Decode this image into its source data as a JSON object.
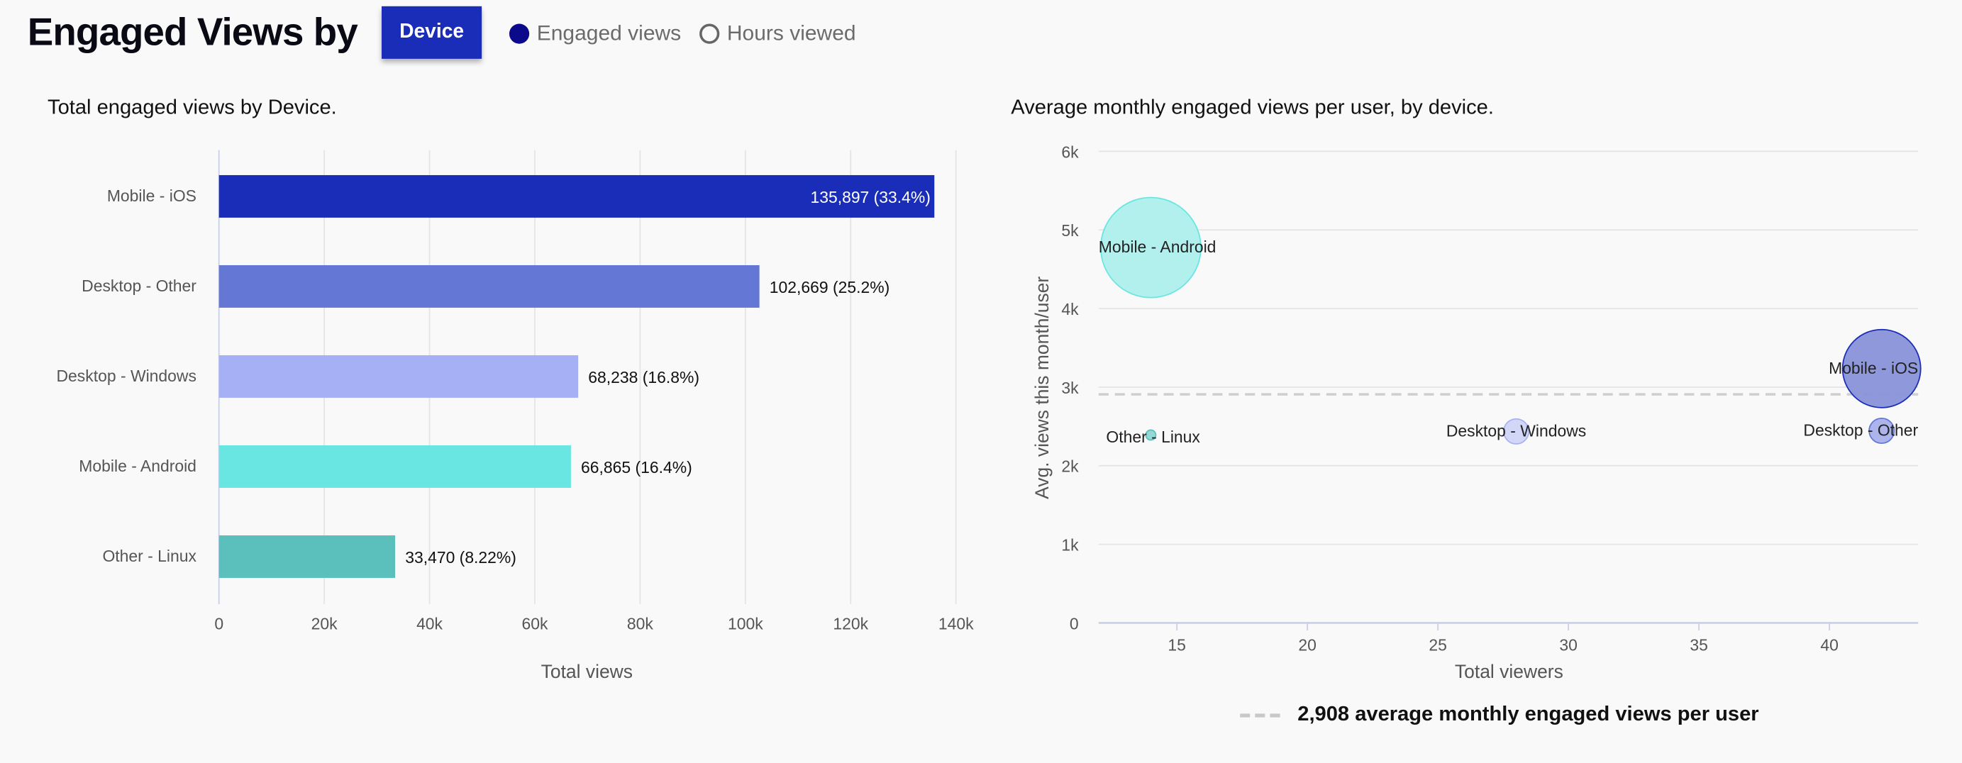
{
  "header": {
    "title": "Engaged Views by",
    "device_button": "Device",
    "legend": [
      {
        "label": "Engaged views",
        "selected": true,
        "color": "#0a0a8a"
      },
      {
        "label": "Hours viewed",
        "selected": false,
        "color": "#666666"
      }
    ]
  },
  "chart_data": [
    {
      "type": "bar",
      "orientation": "horizontal",
      "title": "Total engaged views by Device.",
      "categories": [
        "Mobile - iOS",
        "Desktop - Other",
        "Desktop - Windows",
        "Mobile - Android",
        "Other - Linux"
      ],
      "values": [
        135897,
        102669,
        68238,
        66865,
        33470
      ],
      "data_labels": [
        "135,897 (33.4%)",
        "102,669 (25.2%)",
        "68,238 (16.8%)",
        "66,865 (16.4%)",
        "33,470 (8.22%)"
      ],
      "colors": [
        "#1a2db8",
        "#6477d4",
        "#a6b1f5",
        "#6ae6e2",
        "#5bbfbb"
      ],
      "xlabel": "Total views",
      "xlim": [
        0,
        140000
      ],
      "xticks": [
        0,
        20000,
        40000,
        60000,
        80000,
        100000,
        120000,
        140000
      ],
      "xtick_labels": [
        "0",
        "20k",
        "40k",
        "60k",
        "80k",
        "100k",
        "120k",
        "140k"
      ],
      "grid": true
    },
    {
      "type": "scatter",
      "subtype": "bubble",
      "title": "Average monthly engaged views per user, by device.",
      "points": [
        {
          "label": "Mobile - Android",
          "x": 14,
          "y": 4776,
          "size": 1.0,
          "fill": "#aeefec",
          "stroke": "#6ae6e2"
        },
        {
          "label": "Mobile - iOS",
          "x": 42,
          "y": 3236,
          "size": 0.78,
          "fill": "#8892d9",
          "stroke": "#1a2db8"
        },
        {
          "label": "Desktop - Windows",
          "x": 28,
          "y": 2437,
          "size": 0.25,
          "fill": "#d0d5f8",
          "stroke": "#a6b1f5"
        },
        {
          "label": "Desktop - Other",
          "x": 42,
          "y": 2445,
          "size": 0.25,
          "fill": "#a8b0ea",
          "stroke": "#6477d4"
        },
        {
          "label": "Other - Linux",
          "x": 14,
          "y": 2391,
          "size": 0.1,
          "fill": "#8fd6d3",
          "stroke": "#5bbfbb"
        }
      ],
      "xlabel": "Total viewers",
      "ylabel": "Avg. views this month/user",
      "xlim": [
        12,
        43.4
      ],
      "ylim": [
        0,
        6000
      ],
      "xticks": [
        15,
        20,
        25,
        30,
        35,
        40
      ],
      "xtick_labels": [
        "15",
        "20",
        "25",
        "30",
        "35",
        "40"
      ],
      "yticks": [
        0,
        1000,
        2000,
        3000,
        4000,
        5000,
        6000
      ],
      "ytick_labels": [
        "0",
        "1k",
        "2k",
        "3k",
        "4k",
        "5k",
        "6k"
      ],
      "reference_line": {
        "y": 2908,
        "label": "2,908 average monthly engaged views per user"
      },
      "grid": true
    }
  ]
}
